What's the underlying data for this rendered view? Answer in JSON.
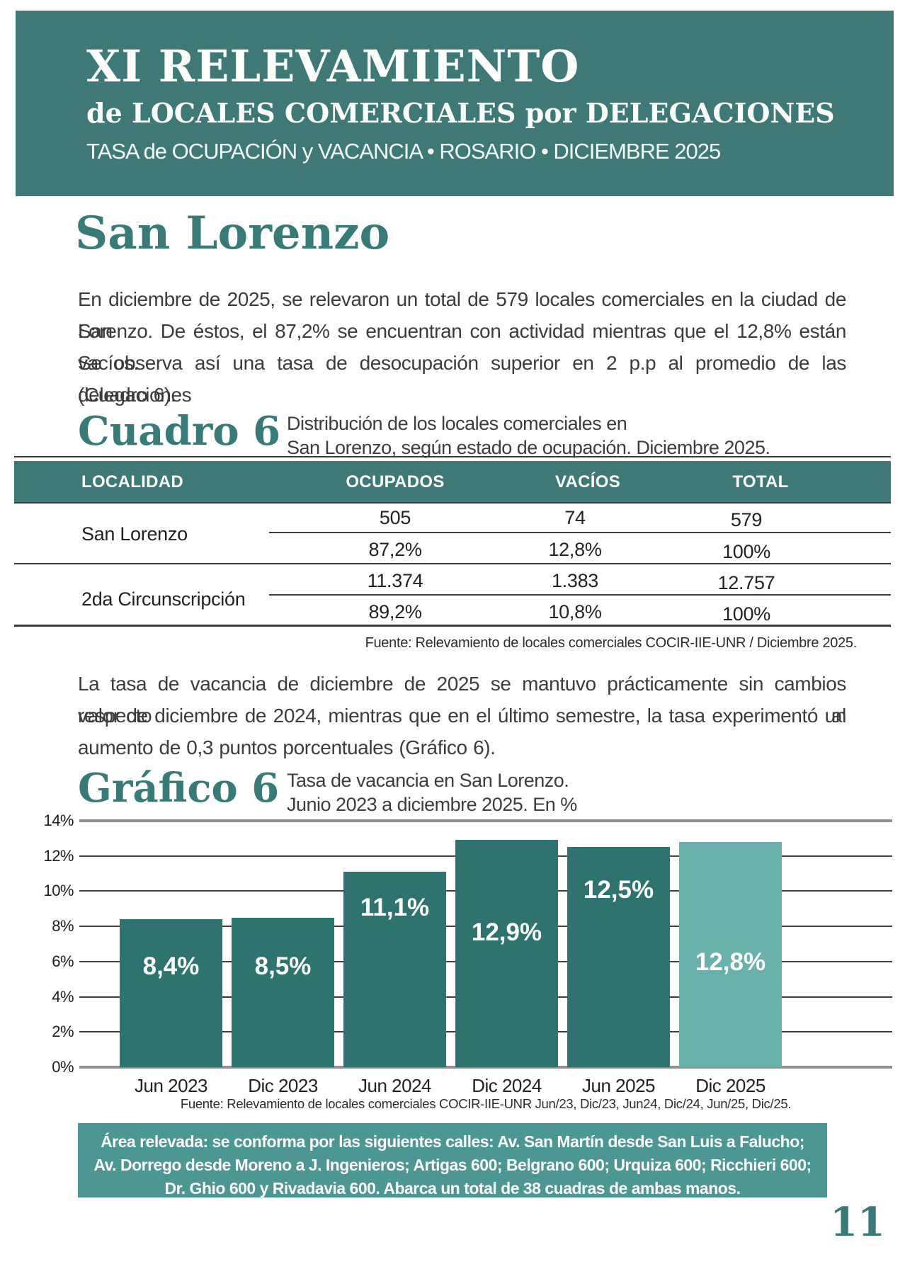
{
  "banner": {
    "title": "XI RELEVAMIENTO",
    "subtitle": "de LOCALES COMERCIALES por DELEGACIONES",
    "tagline": "TASA de OCUPACIÓN y VACANCIA  •  ROSARIO  •  DICIEMBRE 2025"
  },
  "section": {
    "heading": "San Lorenzo",
    "paragraph1_lines": [
      "En diciembre de 2025, se relevaron un total de 579 locales comerciales en la ciudad de San",
      "Lorenzo. De éstos, el 87,2% se encuentran con actividad mientras que el 12,8% están vacíos.",
      "Se observa así una tasa de desocupación superior en 2 p.p al promedio de las delegaciones",
      "(Cuadro 6)."
    ],
    "paragraph2_lines": [
      "La tasa de vacancia de diciembre de 2025 se mantuvo prácticamente sin cambios respecto al",
      "valor de diciembre de 2024, mientras que en el último semestre, la tasa experimentó un",
      "aumento de 0,3 puntos porcentuales (Gráfico 6)."
    ]
  },
  "cuadro": {
    "label": "Cuadro 6",
    "caption_line1": "Distribución de los locales comerciales en",
    "caption_line2": "San Lorenzo, según estado de ocupación. Diciembre 2025.",
    "table": {
      "headers": [
        "LOCALIDAD",
        "OCUPADOS",
        "VACÍOS",
        "TOTAL"
      ],
      "groups": [
        {
          "locality": "San Lorenzo",
          "counts": [
            "505",
            "74",
            "579"
          ],
          "percents": [
            "87,2%",
            "12,8%",
            "100%"
          ]
        },
        {
          "locality": "2da Circunscripción",
          "counts": [
            "11.374",
            "1.383",
            "12.757"
          ],
          "percents": [
            "89,2%",
            "10,8%",
            "100%"
          ]
        }
      ]
    },
    "fuente": "Fuente: Relevamiento de locales comerciales COCIR-IIE-UNR / Diciembre 2025."
  },
  "grafico": {
    "label": "Gráfico 6",
    "caption_line1": "Tasa de vacancia en San Lorenzo.",
    "caption_line2": "Junio 2023 a diciembre 2025. En %",
    "fuente": "Fuente: Relevamiento de locales comerciales COCIR-IIE-UNR Jun/23, Dic/23, Jun24, Dic/24, Jun/25, Dic/25."
  },
  "chart_data": {
    "type": "bar",
    "title": "Tasa de vacancia en San Lorenzo. Junio 2023 a diciembre 2025. En %",
    "categories": [
      "Jun 2023",
      "Dic 2023",
      "Jun 2024",
      "Dic 2024",
      "Jun 2025",
      "Dic 2025"
    ],
    "values": [
      8.4,
      8.5,
      11.1,
      12.9,
      12.5,
      12.8
    ],
    "value_labels": [
      "8,4%",
      "8,5%",
      "11,1%",
      "12,9%",
      "12,5%",
      "12,8%"
    ],
    "xlabel": "",
    "ylabel": "",
    "ylim": [
      0,
      14
    ],
    "ytick_step": 2,
    "ytick_labels": [
      "0%",
      "2%",
      "4%",
      "6%",
      "8%",
      "10%",
      "12%",
      "14%"
    ],
    "grid": true,
    "legend": "none",
    "bar_color": "#2E7370",
    "highlight_last_bar_color": "#6AB1AE"
  },
  "infobox": {
    "line1": "Área relevada: se conforma por las siguientes calles: Av. San Martín desde San Luis a Falucho;",
    "line2": "Av. Dorrego desde Moreno a J. Ingenieros; Artigas 600; Belgrano 600; Urquiza 600; Ricchieri 600;",
    "line3": "Dr. Ghio 600 y Rivadavia 600. Abarca un total de 38 cuadras de ambas manos."
  },
  "page_number": "11",
  "colors": {
    "banner_teal": "#3E7977",
    "bar_teal": "#2E7370",
    "bar_teal_light": "#6AB1AE",
    "infobox_teal": "#4C9693",
    "heading_teal": "#377A77"
  }
}
